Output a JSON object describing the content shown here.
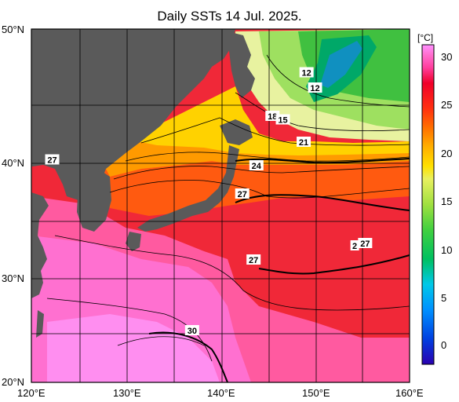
{
  "title": "Daily SSTs 14 Jul. 2025.",
  "colorbar": {
    "unit": "[°C]",
    "ticks": [
      "30",
      "25",
      "20",
      "15",
      "10",
      "5",
      "0"
    ],
    "colors": [
      "#2a00b0",
      "#0040e0",
      "#0090ff",
      "#00c8e8",
      "#00c060",
      "#40d040",
      "#a0e040",
      "#e8f060",
      "#ffe000",
      "#ffb000",
      "#ff7000",
      "#ff3010",
      "#f0002a",
      "#ff40a0",
      "#ff70d0",
      "#ff90ff"
    ]
  },
  "axes": {
    "lat_labels": [
      "50°N",
      "40°N",
      "30°N",
      "20°N"
    ],
    "lon_labels": [
      "120°E",
      "130°E",
      "140°E",
      "150°E",
      "160°E"
    ]
  },
  "contour_labels": [
    {
      "text": "12",
      "lon": 149.1,
      "lat": 46.3
    },
    {
      "text": "12",
      "lon": 150.0,
      "lat": 45.0
    },
    {
      "text": "18",
      "lon": 145.5,
      "lat": 42.6
    },
    {
      "text": "15",
      "lon": 146.6,
      "lat": 42.3
    },
    {
      "text": "21",
      "lon": 148.8,
      "lat": 40.4
    },
    {
      "text": "24",
      "lon": 143.8,
      "lat": 38.4
    },
    {
      "text": "27",
      "lon": 142.3,
      "lat": 36.0
    },
    {
      "text": "27",
      "lon": 122.2,
      "lat": 38.9
    },
    {
      "text": "27",
      "lon": 143.5,
      "lat": 30.4
    },
    {
      "text": "27",
      "lon": 155.3,
      "lat": 31.8
    },
    {
      "text": "2",
      "lon": 154.2,
      "lat": 31.6
    },
    {
      "text": "30",
      "lon": 137.0,
      "lat": 24.4
    }
  ]
}
